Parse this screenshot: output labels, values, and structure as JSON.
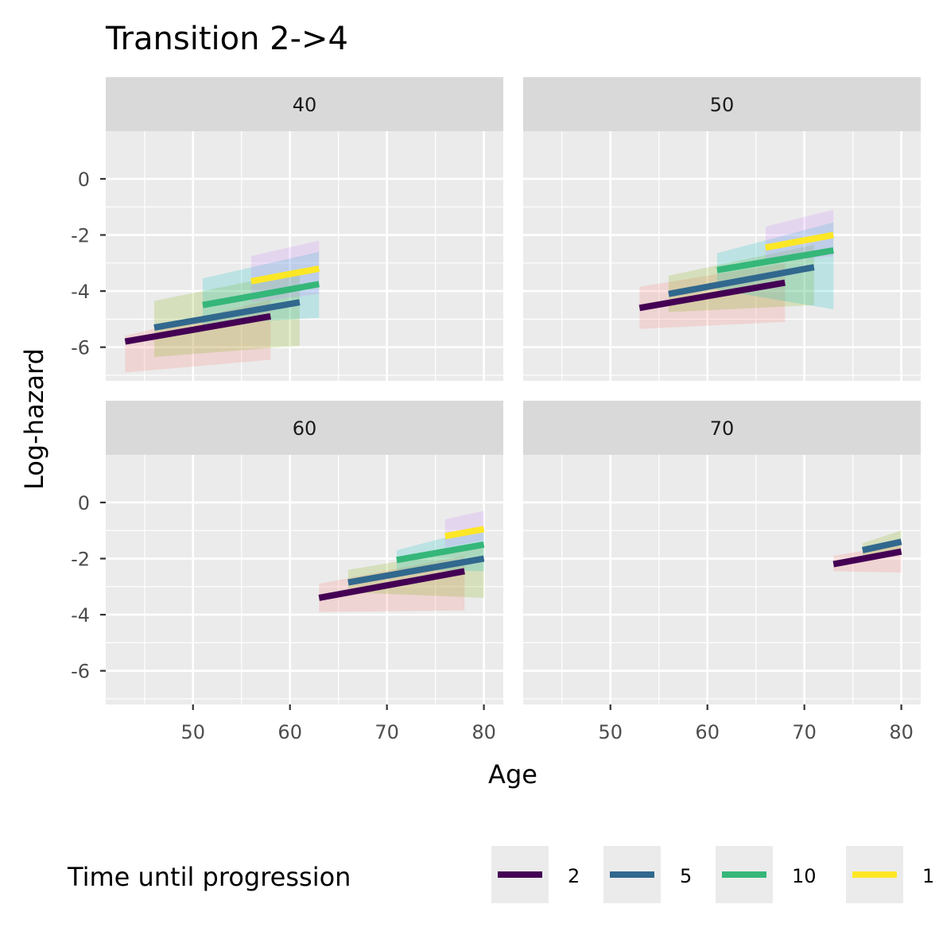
{
  "chart_data": {
    "type": "line",
    "title": "Transition 2->4",
    "xlabel": "Age",
    "ylabel": "Log-hazard",
    "xlim": [
      41,
      82
    ],
    "ylim": [
      -7.2,
      1.7
    ],
    "x_ticks": [
      50,
      60,
      70,
      80
    ],
    "y_ticks": [
      0,
      -2,
      -4,
      -6
    ],
    "x_tick_labels": [
      "50",
      "60",
      "70",
      "80"
    ],
    "y_tick_labels": [
      "0",
      "-2",
      "-4",
      "-6"
    ],
    "grid": true,
    "legend": {
      "title": "Time until progression",
      "position": "bottom",
      "labels": [
        "2",
        "5",
        "10",
        "1"
      ]
    },
    "series_colors": [
      "#440154",
      "#31688E",
      "#35B779",
      "#FDE725"
    ],
    "band_colors": [
      "#F8766D",
      "#7CAE00",
      "#00BFC4",
      "#C77CFF"
    ],
    "panels": [
      {
        "label": "40",
        "series": [
          {
            "name": "2",
            "x": [
              43,
              58
            ],
            "y": [
              -5.8,
              -4.9
            ],
            "lower": [
              -6.9,
              -6.45
            ],
            "upper": [
              -5.6,
              -4.3
            ]
          },
          {
            "name": "5",
            "x": [
              46,
              61
            ],
            "y": [
              -5.3,
              -4.4
            ],
            "lower": [
              -6.35,
              -5.95
            ],
            "upper": [
              -4.35,
              -3.3
            ]
          },
          {
            "name": "10",
            "x": [
              51,
              63
            ],
            "y": [
              -4.5,
              -3.75
            ],
            "lower": [
              -5.2,
              -4.95
            ],
            "upper": [
              -3.55,
              -2.6
            ]
          },
          {
            "name": "1",
            "x": [
              56,
              63
            ],
            "y": [
              -3.65,
              -3.2
            ],
            "lower": [
              -4.4,
              -4.1
            ],
            "upper": [
              -2.75,
              -2.2
            ]
          }
        ]
      },
      {
        "label": "50",
        "series": [
          {
            "name": "2",
            "x": [
              53,
              68
            ],
            "y": [
              -4.6,
              -3.7
            ],
            "lower": [
              -5.35,
              -5.1
            ],
            "upper": [
              -3.85,
              -3.0
            ]
          },
          {
            "name": "5",
            "x": [
              56,
              71
            ],
            "y": [
              -4.1,
              -3.15
            ],
            "lower": [
              -4.75,
              -4.5
            ],
            "upper": [
              -3.45,
              -2.35
            ]
          },
          {
            "name": "10",
            "x": [
              61,
              73
            ],
            "y": [
              -3.25,
              -2.55
            ],
            "lower": [
              -3.95,
              -4.65
            ],
            "upper": [
              -2.65,
              -1.55
            ]
          },
          {
            "name": "1",
            "x": [
              66,
              73
            ],
            "y": [
              -2.45,
              -2.0
            ],
            "lower": [
              -3.0,
              -2.75
            ],
            "upper": [
              -1.7,
              -1.1
            ]
          }
        ]
      },
      {
        "label": "60",
        "series": [
          {
            "name": "2",
            "x": [
              63,
              78
            ],
            "y": [
              -3.4,
              -2.45
            ],
            "lower": [
              -3.9,
              -3.85
            ],
            "upper": [
              -2.9,
              -1.9
            ]
          },
          {
            "name": "5",
            "x": [
              66,
              80
            ],
            "y": [
              -2.85,
              -2.0
            ],
            "lower": [
              -3.2,
              -3.4
            ],
            "upper": [
              -2.4,
              -1.6
            ]
          },
          {
            "name": "10",
            "x": [
              71,
              80
            ],
            "y": [
              -2.05,
              -1.5
            ],
            "lower": [
              -2.4,
              -2.45
            ],
            "upper": [
              -1.7,
              -0.9
            ]
          },
          {
            "name": "1",
            "x": [
              76,
              80
            ],
            "y": [
              -1.2,
              -0.95
            ],
            "lower": [
              -1.6,
              -1.35
            ],
            "upper": [
              -0.6,
              -0.3
            ]
          }
        ]
      },
      {
        "label": "70",
        "series": [
          {
            "name": "2",
            "x": [
              73,
              80
            ],
            "y": [
              -2.2,
              -1.75
            ],
            "lower": [
              -2.45,
              -2.5
            ],
            "upper": [
              -1.9,
              -1.5
            ]
          },
          {
            "name": "5",
            "x": [
              76,
              80
            ],
            "y": [
              -1.7,
              -1.4
            ],
            "lower": [
              -1.95,
              -1.75
            ],
            "upper": [
              -1.45,
              -1.0
            ]
          }
        ]
      }
    ]
  }
}
